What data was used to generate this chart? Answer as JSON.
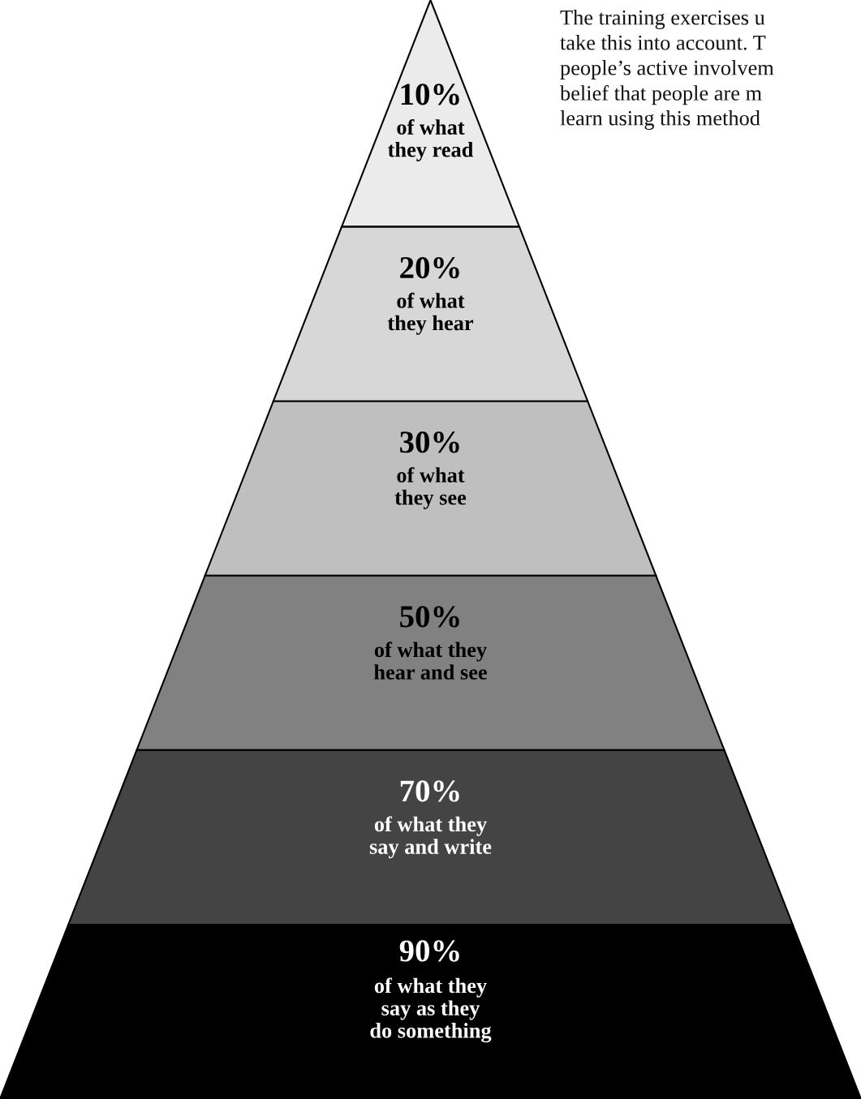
{
  "chart_data": {
    "type": "other",
    "categories": [
      "of what\nthey read",
      "of what\nthey hear",
      "of what\nthey see",
      "of what they\nhear and see",
      "of what they\nsay and write",
      "of what they\nsay as they\ndo something"
    ],
    "values": [
      10,
      20,
      30,
      50,
      70,
      90
    ],
    "value_labels": [
      "10%",
      "20%",
      "30%",
      "50%",
      "70%",
      "90%"
    ],
    "annotations": [
      "The training exercises u",
      "take this into account. T",
      "people’s active involvem",
      "belief that people are m",
      "learn using this method"
    ]
  }
}
